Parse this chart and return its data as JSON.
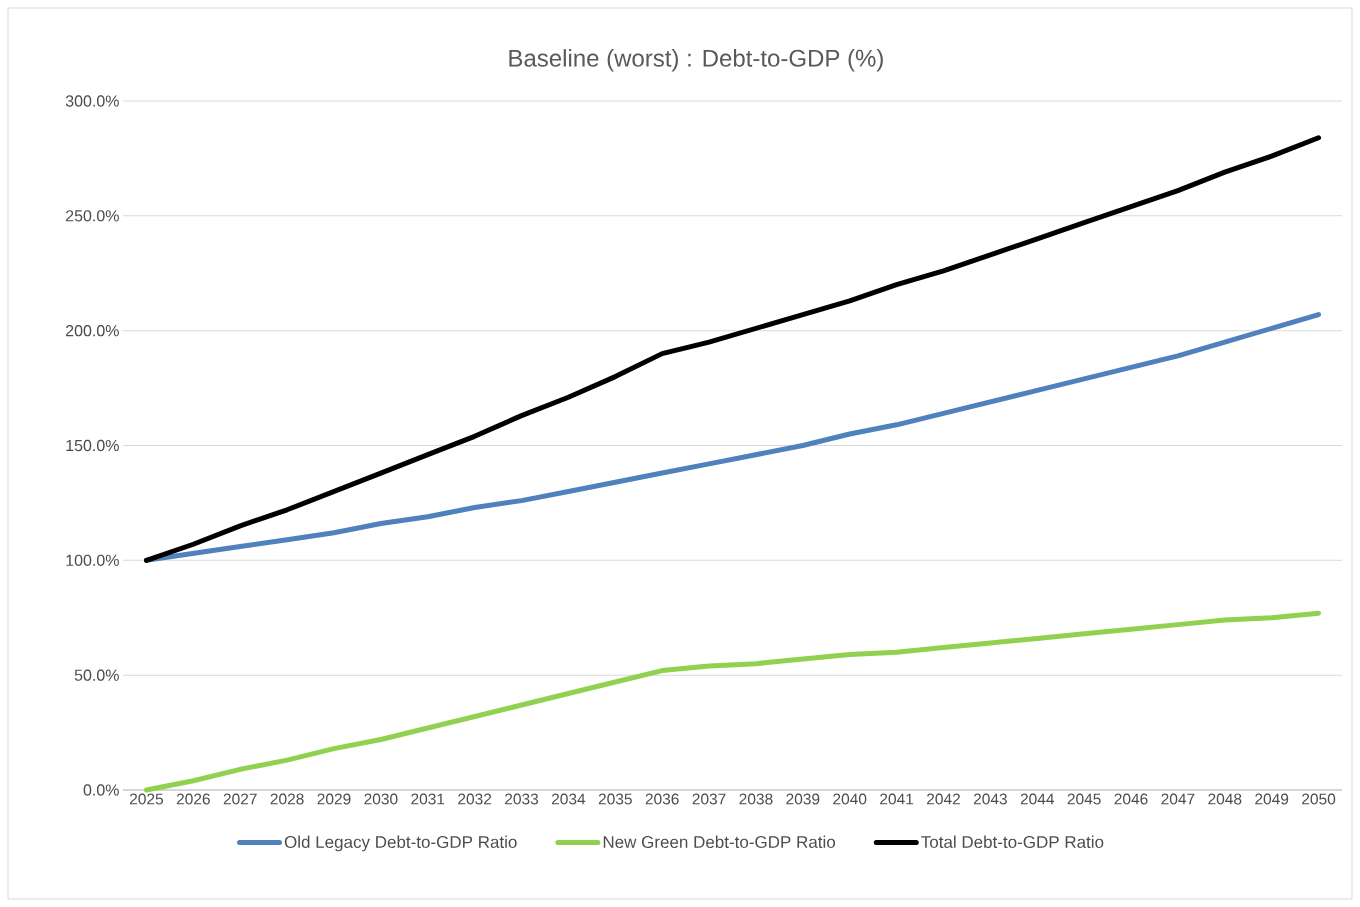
{
  "chart_data": {
    "type": "line",
    "title": "Baseline (worst) : Debt-to-GDP (%)",
    "categories": [
      "2025",
      "2026",
      "2027",
      "2028",
      "2029",
      "2030",
      "2031",
      "2032",
      "2033",
      "2034",
      "2035",
      "2036",
      "2037",
      "2038",
      "2039",
      "2040",
      "2041",
      "2042",
      "2043",
      "2044",
      "2045",
      "2046",
      "2047",
      "2048",
      "2049",
      "2050"
    ],
    "series": [
      {
        "name": "Old Legacy Debt-to-GDP Ratio",
        "color": "#4f81bd",
        "values": [
          100,
          103,
          106,
          109,
          112,
          116,
          119,
          123,
          126,
          130,
          134,
          138,
          142,
          146,
          150,
          155,
          159,
          164,
          169,
          174,
          179,
          184,
          189,
          195,
          201,
          207
        ]
      },
      {
        "name": "New Green Debt-to-GDP Ratio",
        "color": "#92d050",
        "values": [
          0,
          4,
          9,
          13,
          18,
          22,
          27,
          32,
          37,
          42,
          47,
          52,
          54,
          55,
          57,
          59,
          60,
          62,
          64,
          66,
          68,
          70,
          72,
          74,
          75,
          77
        ]
      },
      {
        "name": "Total Debt-to-GDP Ratio",
        "color": "#000000",
        "values": [
          100,
          107,
          115,
          122,
          130,
          138,
          146,
          154,
          163,
          171,
          180,
          190,
          195,
          201,
          207,
          213,
          220,
          226,
          233,
          240,
          247,
          254,
          261,
          269,
          276,
          284
        ]
      }
    ],
    "ylim": [
      0,
      300
    ],
    "yticks": [
      {
        "value": 0,
        "label": "0.0%"
      },
      {
        "value": 50,
        "label": "50.0%"
      },
      {
        "value": 100,
        "label": "100.0%"
      },
      {
        "value": 150,
        "label": "150.0%"
      },
      {
        "value": 200,
        "label": "200.0%"
      },
      {
        "value": 250,
        "label": "250.0%"
      },
      {
        "value": 300,
        "label": "300.0%"
      }
    ],
    "grid": "y",
    "legend": "bottom"
  }
}
